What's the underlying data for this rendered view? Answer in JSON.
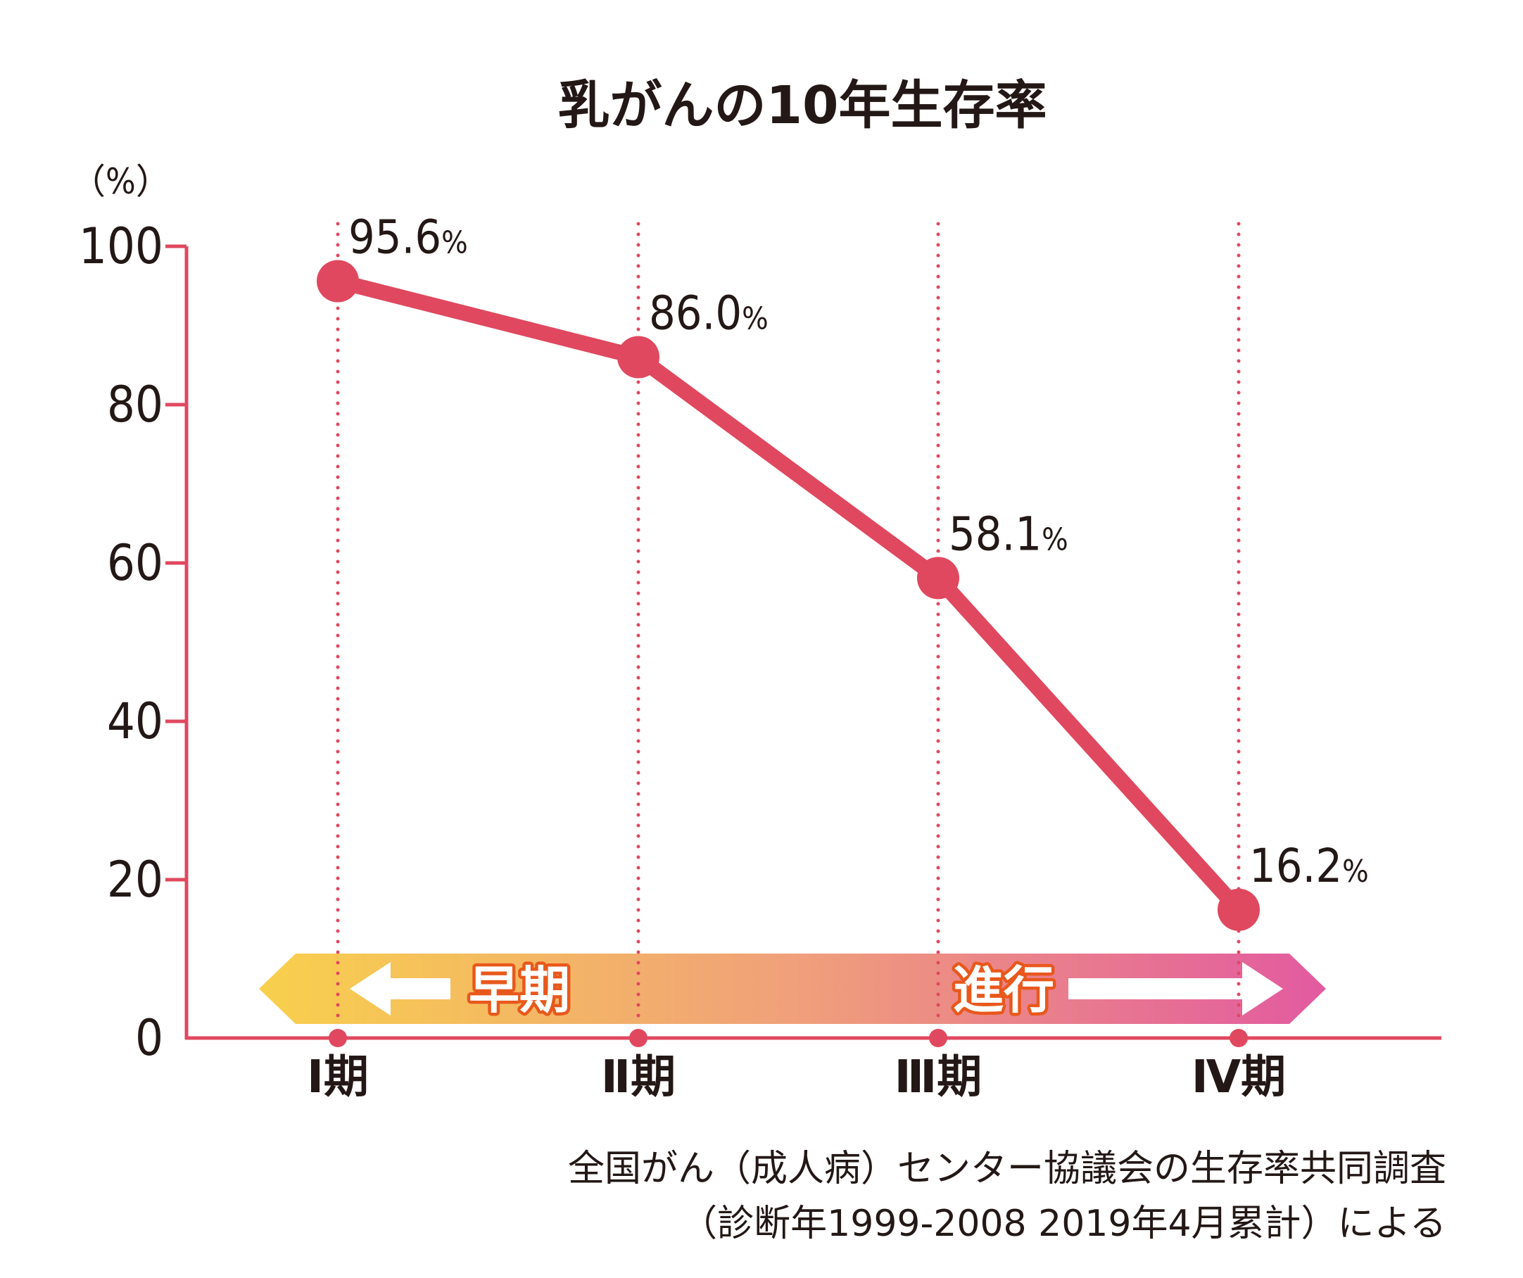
{
  "chart_data": {
    "type": "line",
    "title": "乳がんの10年生存率",
    "ylabel": "（%）",
    "ylim": [
      0,
      100
    ],
    "yticks": [
      "0",
      "20",
      "40",
      "60",
      "80",
      "100"
    ],
    "categories": [
      "Ⅰ期",
      "Ⅱ期",
      "Ⅲ期",
      "Ⅳ期"
    ],
    "series": [
      {
        "values": [
          95.6,
          86.0,
          58.1,
          16.2
        ],
        "labels": [
          "95.6",
          "86.0",
          "58.1",
          "16.2"
        ]
      }
    ],
    "value_suffix": "%",
    "stage_band": {
      "early": "早期",
      "advanced": "進行"
    },
    "source": [
      "全国がん（成人病）センター協議会の生存率共同調査",
      "（診断年1999-2008 2019年4月累計）による"
    ],
    "colors": {
      "line": "#e0485f",
      "axis": "#e0485f",
      "band_start": "#f8d04c",
      "band_mid": "#f0a07a",
      "band_end": "#e25aa0",
      "band_label_outline": "#e8581c"
    }
  }
}
